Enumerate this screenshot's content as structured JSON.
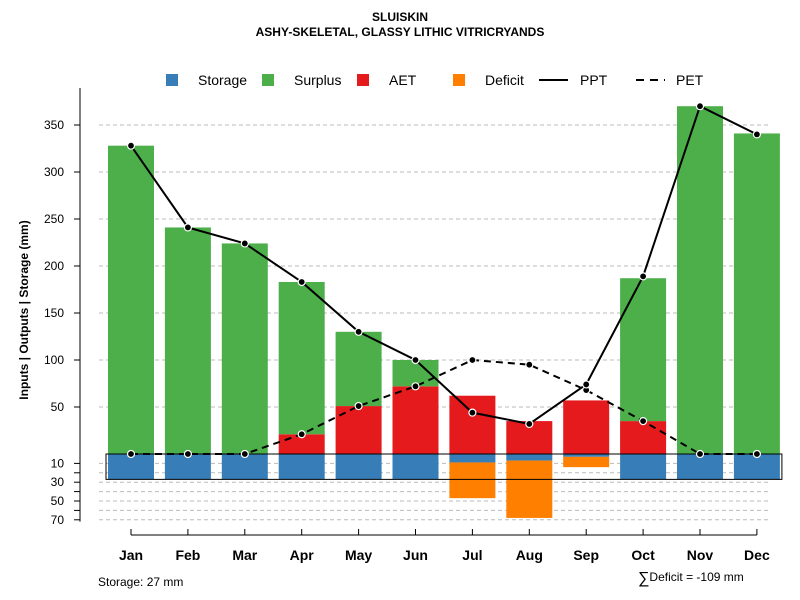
{
  "title": "SLUISKIN",
  "subtitle": "ASHY-SKELETAL, GLASSY LITHIC VITRICRYANDS",
  "colors": {
    "storage": "#377EB8",
    "surplus": "#4DAF4A",
    "aet": "#E41A1C",
    "deficit": "#FF7F00",
    "line": "#000000",
    "grid": "#BBBBBB"
  },
  "legend": {
    "storage": "Storage",
    "surplus": "Surplus",
    "aet": "AET",
    "deficit": "Deficit",
    "ppt": "PPT",
    "pet": "PET"
  },
  "footer": {
    "storage_note": "Storage: 27 mm",
    "deficit_sigma": "∑",
    "deficit_note": "Deficit = -109 mm"
  },
  "chart_data": {
    "type": "bar",
    "title": "SLUISKIN",
    "subtitle": "ASHY-SKELETAL, GLASSY LITHIC VITRICRYANDS",
    "xlabel": "",
    "ylabel": "Inputs | Outputs | Storage    (mm)",
    "categories": [
      "Jan",
      "Feb",
      "Mar",
      "Apr",
      "May",
      "Jun",
      "Jul",
      "Aug",
      "Sep",
      "Oct",
      "Nov",
      "Dec"
    ],
    "upper_axis": {
      "ylim": [
        0,
        375
      ],
      "ticks": [
        50,
        100,
        150,
        200,
        250,
        300,
        350
      ]
    },
    "lower_axis": {
      "ylim": [
        0,
        70
      ],
      "ticks": [
        10,
        20,
        30,
        40,
        50,
        60,
        70
      ],
      "tick_labels": [
        "10",
        "30",
        "50",
        "70"
      ]
    },
    "storage_capacity": 27,
    "series": [
      {
        "name": "AET",
        "values": [
          0,
          0,
          0,
          21,
          51,
          72,
          62,
          35,
          57,
          35,
          0,
          0
        ]
      },
      {
        "name": "Surplus",
        "values": [
          328,
          241,
          224,
          162,
          79,
          28,
          0,
          0,
          0,
          152,
          370,
          341
        ]
      },
      {
        "name": "Storage",
        "values": [
          27,
          27,
          27,
          27,
          27,
          27,
          9,
          7,
          3,
          27,
          27,
          27
        ]
      },
      {
        "name": "Deficit",
        "values": [
          0,
          0,
          0,
          0,
          0,
          0,
          38,
          61,
          11,
          0,
          0,
          0
        ]
      },
      {
        "name": "PPT",
        "values": [
          328,
          241,
          224,
          183,
          130,
          100,
          44,
          32,
          74,
          189,
          370,
          340
        ]
      },
      {
        "name": "PET",
        "values": [
          0,
          0,
          0,
          21,
          51,
          72,
          100,
          95,
          68,
          35,
          0,
          0
        ]
      }
    ]
  }
}
